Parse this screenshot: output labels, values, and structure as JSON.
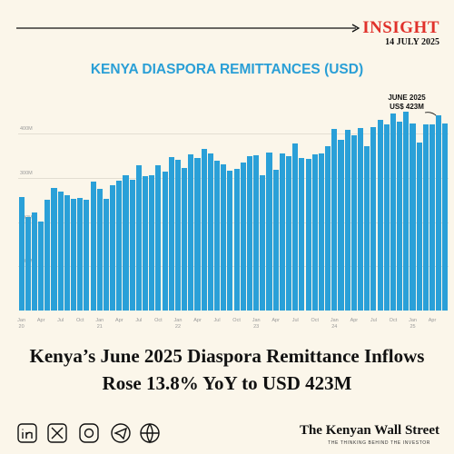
{
  "header": {
    "brand": "INSIGHT",
    "date": "14 JULY 2025"
  },
  "chart_data": {
    "type": "bar",
    "title": "KENYA DIASPORA REMITTANCES (USD)",
    "annotation": [
      "JUNE 2025",
      "US$ 423M"
    ],
    "color": "#2aa0d8",
    "categories": [
      "Jan\n20",
      null,
      null,
      "Apr",
      null,
      null,
      "Jul",
      null,
      null,
      "Oct",
      null,
      null,
      "Jan\n21",
      null,
      null,
      "Apr",
      null,
      null,
      "Jul",
      null,
      null,
      "Oct",
      null,
      null,
      "Jan\n22",
      null,
      null,
      "Apr",
      null,
      null,
      "Jul",
      null,
      null,
      "Oct",
      null,
      null,
      "Jan\n23",
      null,
      null,
      "Apr",
      null,
      null,
      "Jul",
      null,
      null,
      "Oct",
      null,
      null,
      "Jan\n24",
      null,
      null,
      "Apr",
      null,
      null,
      "Jul",
      null,
      null,
      "Oct",
      null,
      null,
      "Jan\n25",
      null,
      null,
      "Apr",
      null,
      null
    ],
    "values": [
      257,
      211,
      221,
      201,
      250,
      277,
      268,
      261,
      252,
      254,
      250,
      291,
      275,
      252,
      283,
      293,
      305,
      296,
      328,
      303,
      305,
      328,
      314,
      348,
      341,
      323,
      354,
      345,
      365,
      355,
      339,
      331,
      316,
      320,
      334,
      350,
      352,
      306,
      358,
      319,
      355,
      349,
      378,
      346,
      342,
      354,
      355,
      372,
      411,
      387,
      408,
      396,
      413,
      372,
      415,
      432,
      422,
      445,
      428,
      450,
      424,
      380,
      421,
      421,
      441,
      423
    ],
    "ylim": [
      0,
      460
    ],
    "yticks": [
      {
        "value": 100,
        "label": "100M"
      },
      {
        "value": 200,
        "label": "200M"
      },
      {
        "value": 300,
        "label": "300M"
      },
      {
        "value": 400,
        "label": "400M"
      }
    ],
    "grid": true
  },
  "headline": [
    "Kenya’s June 2025 Diaspora Remittance Inflows",
    "Rose 13.8% YoY to USD 423M"
  ],
  "footer": {
    "logo": "The Kenyan Wall Street",
    "tagline": "THE THINKING BEHIND THE INVESTOR"
  }
}
